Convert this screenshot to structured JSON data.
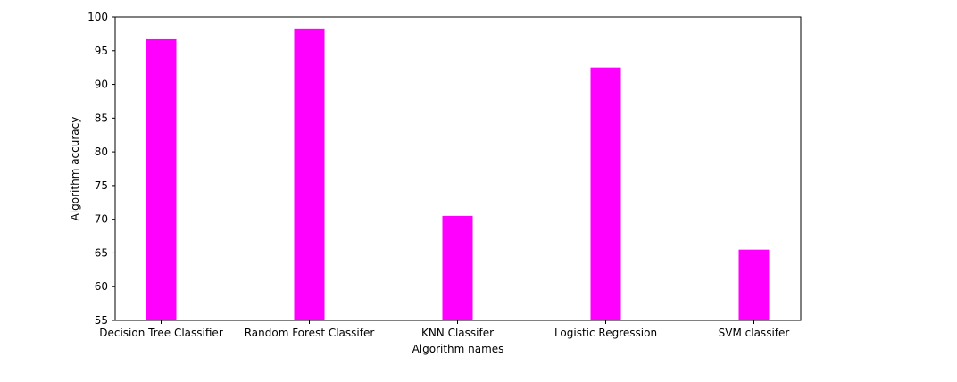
{
  "chart_data": {
    "type": "bar",
    "title": "",
    "xlabel": "Algorithm names",
    "ylabel": "Algorithm accuracy",
    "categories": [
      "Decision Tree Classifier",
      "Random Forest Classifer",
      "KNN Classifer",
      "Logistic Regression",
      "SVM classifer"
    ],
    "values": [
      96.7,
      98.3,
      70.5,
      92.5,
      65.5
    ],
    "ylim": [
      55,
      100
    ],
    "yticks": [
      "55",
      "60",
      "65",
      "70",
      "75",
      "80",
      "85",
      "90",
      "95",
      "100"
    ],
    "bar_color": "#ff00ff",
    "grid": false,
    "legend": "none"
  }
}
